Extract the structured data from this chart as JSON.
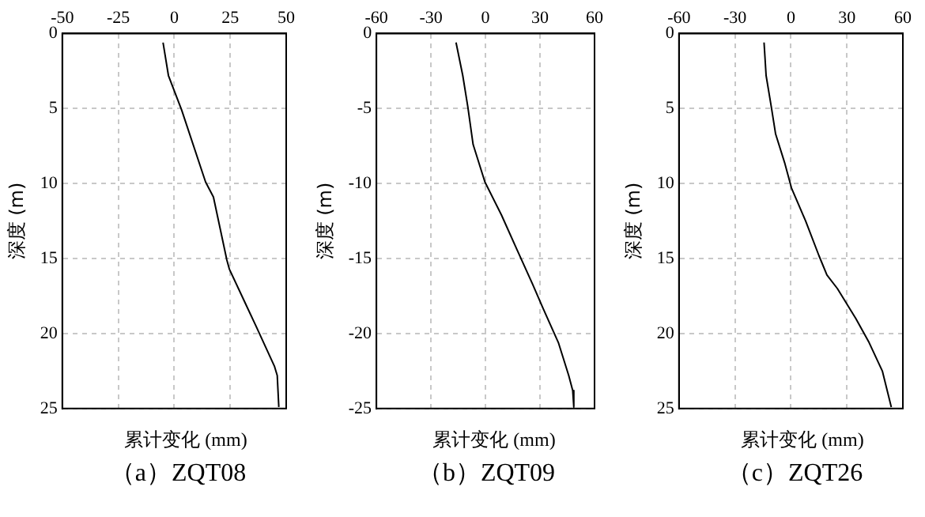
{
  "chart_data": [
    {
      "type": "line",
      "title": "（a）ZQT08",
      "xlabel": "累计变化 (mm)",
      "ylabel": "深度 (m)",
      "xlim": [
        -50,
        50
      ],
      "xticks": [
        -50,
        -25,
        0,
        25,
        50
      ],
      "ylim": [
        25,
        0
      ],
      "yticks": [
        0,
        5,
        10,
        15,
        20,
        25
      ],
      "grid": true,
      "legend": false,
      "marker": "none",
      "line_style": "solid",
      "series": [
        {
          "color": "#000000",
          "x": [
            -5,
            -2.6,
            3.3,
            14,
            17.5,
            23.5,
            24.6,
            31.8,
            36.5,
            44.8,
            46,
            46.7
          ],
          "values": [
            0.6,
            2.8,
            5.1,
            9.9,
            10.9,
            15.1,
            15.7,
            18,
            19.5,
            22.2,
            22.8,
            24.9
          ]
        }
      ]
    },
    {
      "type": "line",
      "title": "（b）ZQT09",
      "xlabel": "累计变化 (mm)",
      "ylabel": "深度 (m)",
      "xlim": [
        -60,
        60
      ],
      "xticks": [
        -60,
        -30,
        0,
        30,
        60
      ],
      "ylim": [
        -25,
        0
      ],
      "yticks": [
        0,
        -5,
        -10,
        -15,
        -20,
        -25
      ],
      "grid": true,
      "legend": false,
      "marker": "none",
      "line_style": "solid",
      "series": [
        {
          "color": "#000000",
          "x": [
            -16.2,
            -12.5,
            -9.7,
            -6.8,
            -0.3,
            8.8,
            17.3,
            25.9,
            31.6,
            40.1,
            45.8,
            48,
            48.6
          ],
          "values": [
            -0.6,
            -2.8,
            -4.9,
            -7.4,
            -9.9,
            -12.1,
            -14.4,
            -16.7,
            -18.3,
            -20.6,
            -22.8,
            -23.8,
            -24.9
          ]
        }
      ]
    },
    {
      "type": "line",
      "title": "（c）ZQT26",
      "xlabel": "累计变化 (mm)",
      "ylabel": "深度 (m)",
      "xlim": [
        -60,
        60
      ],
      "xticks": [
        -60,
        -30,
        0,
        30,
        60
      ],
      "ylim": [
        25,
        0
      ],
      "yticks": [
        0,
        5,
        10,
        15,
        20,
        25
      ],
      "grid": true,
      "legend": false,
      "marker": "none",
      "line_style": "solid",
      "series": [
        {
          "color": "#000000",
          "x": [
            -14.4,
            -13.3,
            -10.5,
            -8.2,
            -3.4,
            0.3,
            7.9,
            15,
            19.3,
            24.9,
            34.8,
            41.9,
            49,
            53.8
          ],
          "values": [
            0.6,
            2.8,
            4.9,
            6.7,
            8.6,
            10.3,
            12.5,
            14.8,
            16.1,
            17,
            19,
            20.6,
            22.5,
            24.9
          ]
        }
      ]
    }
  ]
}
